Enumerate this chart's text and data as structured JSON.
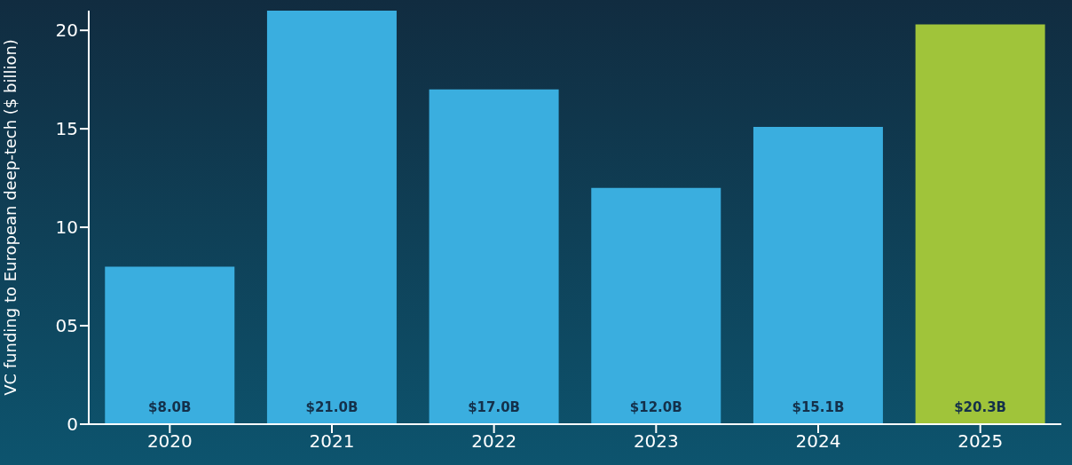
{
  "chart_data": {
    "type": "bar",
    "ylabel": "VC funding to European deep-tech ($ billion)",
    "categories": [
      "2020",
      "2021",
      "2022",
      "2023",
      "2024",
      "2025"
    ],
    "values": [
      8.0,
      21.0,
      17.0,
      12.0,
      15.1,
      20.3
    ],
    "colors": [
      "#3aaedf",
      "#3aaedf",
      "#3aaedf",
      "#3aaedf",
      "#3aaedf",
      "#a0c43a"
    ],
    "value_labels": [
      "$8.0B",
      "$21.0B",
      "$17.0B",
      "$12.0B",
      "$15.1B",
      "$20.3B"
    ],
    "ylim": [
      0,
      21
    ],
    "yticks": [
      0,
      {
        "value": 5,
        "label": "05"
      },
      10,
      15,
      20
    ],
    "grid": false,
    "legend": false
  }
}
